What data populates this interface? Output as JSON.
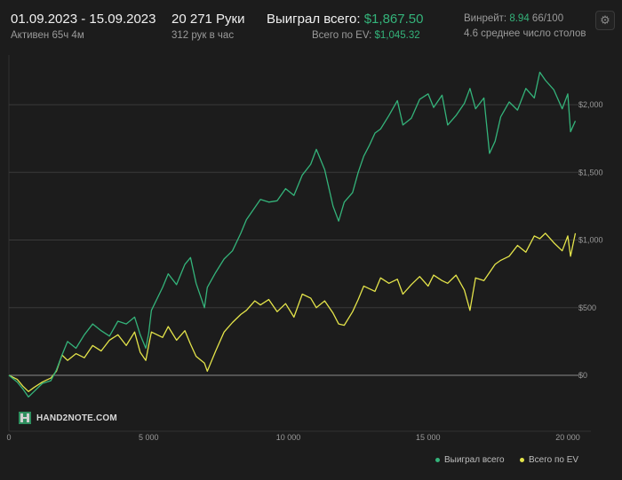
{
  "header": {
    "period": "01.09.2023 - 15.09.2023",
    "active": "Активен 65ч 4м",
    "hands": "20 271 Руки",
    "hands_per_hour": "312 рук в час",
    "won_label": "Выиграл всего:",
    "won_value": "$1,867.50",
    "ev_label": "Всего по EV:",
    "ev_value": "$1,045.32",
    "winrate_label": "Винрейт:",
    "winrate_value": "8.94",
    "winrate_suffix": "66/100",
    "tables": "4.6 среднее число столов",
    "settings_icon": "gear-icon"
  },
  "logo": "HAND2NOTE.COM",
  "colors": {
    "won": "#34b37a",
    "ev": "#e4e44a",
    "background": "#1c1c1c",
    "grid": "#3a3a3a"
  },
  "chart_data": {
    "type": "line",
    "title": "",
    "xlabel": "",
    "ylabel": "",
    "xlim": [
      0,
      20271
    ],
    "ylim": [
      -200,
      2350
    ],
    "x_ticks": [
      0,
      5000,
      10000,
      15000,
      20000
    ],
    "x_tick_labels": [
      "0",
      "5 000",
      "10 000",
      "15 000",
      "20 000"
    ],
    "y_ticks": [
      0,
      500,
      1000,
      1500,
      2000
    ],
    "y_tick_labels": [
      "$0",
      "$500",
      "$1,000",
      "$1,500",
      "$2,000"
    ],
    "grid": "horizontal",
    "legend_position": "bottom-right",
    "series": [
      {
        "name": "Выиграл всего",
        "color": "#34b37a",
        "x": [
          0,
          300,
          500,
          700,
          900,
          1200,
          1500,
          1700,
          1900,
          2100,
          2400,
          2700,
          3000,
          3300,
          3600,
          3900,
          4200,
          4500,
          4700,
          4900,
          5000,
          5100,
          5500,
          5700,
          6000,
          6300,
          6500,
          6700,
          7000,
          7100,
          7400,
          7700,
          8000,
          8300,
          8500,
          8800,
          9000,
          9300,
          9600,
          9900,
          10200,
          10500,
          10800,
          11000,
          11300,
          11600,
          11800,
          12000,
          12300,
          12500,
          12700,
          12900,
          13100,
          13300,
          13600,
          13900,
          14100,
          14400,
          14700,
          15000,
          15200,
          15500,
          15700,
          16000,
          16300,
          16500,
          16700,
          17000,
          17200,
          17400,
          17600,
          17900,
          18200,
          18500,
          18800,
          19000,
          19200,
          19500,
          19800,
          20000,
          20100,
          20271
        ],
        "y": [
          0,
          -50,
          -100,
          -160,
          -120,
          -60,
          -40,
          40,
          150,
          250,
          200,
          300,
          380,
          330,
          290,
          400,
          380,
          430,
          300,
          200,
          310,
          480,
          650,
          750,
          670,
          820,
          870,
          680,
          500,
          650,
          760,
          860,
          920,
          1050,
          1150,
          1240,
          1300,
          1280,
          1290,
          1380,
          1330,
          1480,
          1560,
          1670,
          1520,
          1250,
          1140,
          1280,
          1350,
          1500,
          1620,
          1700,
          1790,
          1820,
          1920,
          2030,
          1850,
          1900,
          2040,
          2080,
          1980,
          2070,
          1850,
          1920,
          2010,
          2120,
          1970,
          2050,
          1640,
          1730,
          1910,
          2020,
          1960,
          2120,
          2050,
          2240,
          2180,
          2110,
          1970,
          2080,
          1800,
          1880
        ]
      },
      {
        "name": "Всего по EV",
        "color": "#e4e44a",
        "x": [
          0,
          300,
          500,
          700,
          900,
          1200,
          1500,
          1700,
          1900,
          2100,
          2400,
          2700,
          3000,
          3300,
          3600,
          3900,
          4200,
          4500,
          4700,
          4900,
          5000,
          5100,
          5500,
          5700,
          6000,
          6300,
          6500,
          6700,
          7000,
          7100,
          7400,
          7700,
          8000,
          8300,
          8500,
          8800,
          9000,
          9300,
          9600,
          9900,
          10200,
          10500,
          10800,
          11000,
          11300,
          11600,
          11800,
          12000,
          12300,
          12500,
          12700,
          12900,
          13100,
          13300,
          13600,
          13900,
          14100,
          14400,
          14700,
          15000,
          15200,
          15500,
          15700,
          16000,
          16300,
          16500,
          16700,
          17000,
          17200,
          17400,
          17600,
          17900,
          18200,
          18500,
          18800,
          19000,
          19200,
          19500,
          19800,
          20000,
          20100,
          20271
        ],
        "y": [
          0,
          -30,
          -80,
          -120,
          -90,
          -50,
          -20,
          30,
          150,
          110,
          160,
          130,
          220,
          180,
          260,
          300,
          220,
          320,
          170,
          110,
          220,
          320,
          280,
          360,
          260,
          330,
          230,
          140,
          90,
          30,
          180,
          320,
          390,
          450,
          480,
          550,
          520,
          560,
          470,
          530,
          430,
          600,
          570,
          500,
          550,
          460,
          380,
          370,
          470,
          560,
          660,
          640,
          620,
          720,
          680,
          710,
          600,
          670,
          730,
          660,
          740,
          700,
          680,
          740,
          630,
          480,
          720,
          700,
          760,
          820,
          850,
          880,
          960,
          910,
          1030,
          1010,
          1050,
          980,
          920,
          1030,
          880,
          1050
        ]
      }
    ]
  },
  "legend": {
    "won": "Выиграл всего",
    "ev": "Всего по EV"
  }
}
